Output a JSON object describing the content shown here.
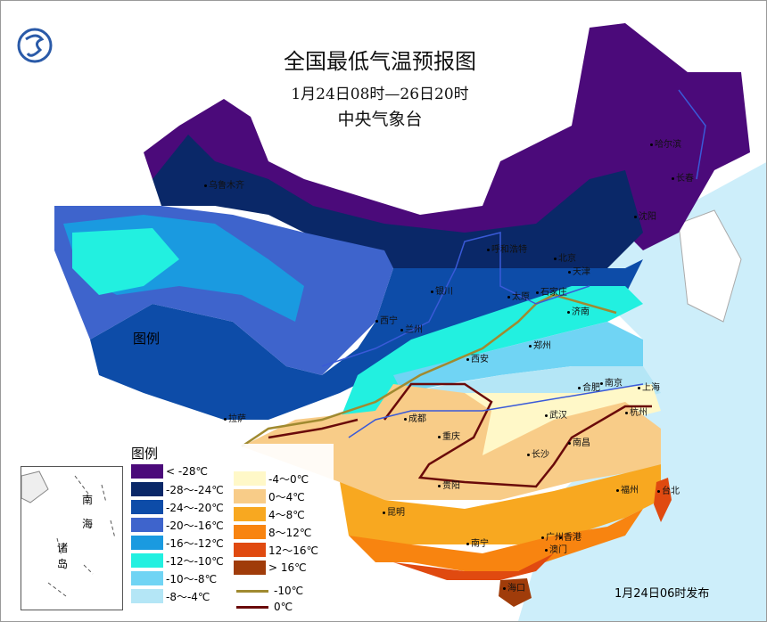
{
  "title": "全国最低气温预报图",
  "period": "1月24日08时—26日20时",
  "issuer": "中央气象台",
  "footer": "1月24日06时发布",
  "map_legend_label": "图例",
  "legend": {
    "title": "图例",
    "items": [
      {
        "label": "< -28℃",
        "color": "#4b0a7a"
      },
      {
        "label": "-28～-24℃",
        "color": "#0a2868"
      },
      {
        "label": "-24～-20℃",
        "color": "#0d4ca8"
      },
      {
        "label": "-20～-16℃",
        "color": "#3e64cc"
      },
      {
        "label": "-16～-12℃",
        "color": "#1a9ae0"
      },
      {
        "label": "-12～-10℃",
        "color": "#22f0e0"
      },
      {
        "label": "-10～-8℃",
        "color": "#70d4f4"
      },
      {
        "label": "-8～-4℃",
        "color": "#b4e6f6"
      },
      {
        "label": "-4～0℃",
        "color": "#fff8c8"
      },
      {
        "label": "0～4℃",
        "color": "#f8cc88"
      },
      {
        "label": "4～8℃",
        "color": "#f8a820"
      },
      {
        "label": "8～12℃",
        "color": "#f88410"
      },
      {
        "label": "12～16℃",
        "color": "#e04a10"
      },
      {
        "label": "> 16℃",
        "color": "#a03c0a"
      }
    ],
    "lines": [
      {
        "label": "-10℃",
        "color": "#a08a30"
      },
      {
        "label": "0℃",
        "color": "#6a0a0a"
      }
    ]
  },
  "inset": {
    "labels": [
      "南",
      "海",
      "诸",
      "岛"
    ]
  },
  "cities": [
    {
      "name": "乌鲁木齐"
    },
    {
      "name": "哈尔滨"
    },
    {
      "name": "长春"
    },
    {
      "name": "沈阳"
    },
    {
      "name": "呼和浩特"
    },
    {
      "name": "北京"
    },
    {
      "name": "天津"
    },
    {
      "name": "银川"
    },
    {
      "name": "太原"
    },
    {
      "name": "石家庄"
    },
    {
      "name": "济南"
    },
    {
      "name": "西宁"
    },
    {
      "name": "兰州"
    },
    {
      "name": "西安"
    },
    {
      "name": "郑州"
    },
    {
      "name": "合肥"
    },
    {
      "name": "南京"
    },
    {
      "name": "上海"
    },
    {
      "name": "拉萨"
    },
    {
      "name": "成都"
    },
    {
      "name": "重庆"
    },
    {
      "name": "武汉"
    },
    {
      "name": "杭州"
    },
    {
      "name": "南昌"
    },
    {
      "name": "长沙"
    },
    {
      "name": "贵阳"
    },
    {
      "name": "昆明"
    },
    {
      "name": "福州"
    },
    {
      "name": "台北"
    },
    {
      "name": "南宁"
    },
    {
      "name": "广州"
    },
    {
      "name": "香港"
    },
    {
      "name": "澳门"
    },
    {
      "name": "海口"
    }
  ]
}
